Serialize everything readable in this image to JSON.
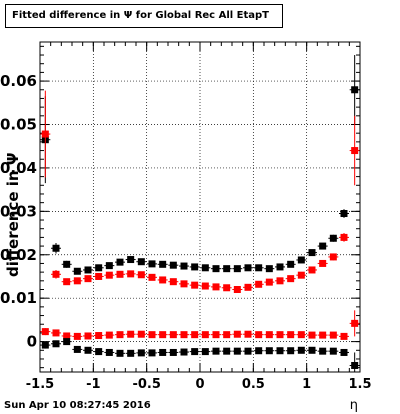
{
  "title": "Fitted difference in  Ψ  for Global Rec All EtapT",
  "timestamp": "Sun Apr 10 08:27:45 2016",
  "chart_data": {
    "type": "scatter",
    "title": "Fitted difference in  Ψ  for Global Rec All EtapT",
    "xlabel": "η",
    "ylabel": "difference in  Ψ",
    "xlim": [
      -1.5,
      1.5
    ],
    "ylim": [
      -0.007,
      0.069
    ],
    "x_ticks": [
      "-1.5",
      "-1",
      "-0.5",
      "0",
      "0.5",
      "1",
      "1.5"
    ],
    "y_ticks": [
      "0",
      "0.01",
      "0.02",
      "0.03",
      "0.04",
      "0.05",
      "0.06"
    ],
    "grid": true,
    "series": [
      {
        "color": "#000000",
        "x": [
          -1.45,
          -1.35,
          -1.25,
          -1.15,
          -1.05,
          -0.95,
          -0.85,
          -0.75,
          -0.65,
          -0.55,
          -0.45,
          -0.35,
          -0.25,
          -0.15,
          -0.05,
          0.05,
          0.15,
          0.25,
          0.35,
          0.45,
          0.55,
          0.65,
          0.75,
          0.85,
          0.95,
          1.05,
          1.15,
          1.25,
          1.35,
          1.45
        ],
        "y": [
          0.0465,
          0.0215,
          0.0178,
          0.0162,
          0.0165,
          0.017,
          0.0175,
          0.0183,
          0.0189,
          0.0184,
          0.0179,
          0.0178,
          0.0176,
          0.0174,
          0.0172,
          0.017,
          0.0168,
          0.0168,
          0.0168,
          0.017,
          0.017,
          0.0168,
          0.0172,
          0.0178,
          0.0188,
          0.0205,
          0.022,
          0.0238,
          0.0295,
          0.058
        ],
        "err": [
          0.01,
          0.0012,
          0.0008,
          0.0005,
          0.0004,
          0.0004,
          0.0004,
          0.0004,
          0.0004,
          0.0004,
          0.0004,
          0.0004,
          0.0004,
          0.0004,
          0.0004,
          0.0004,
          0.0004,
          0.0004,
          0.0004,
          0.0004,
          0.0004,
          0.0004,
          0.0004,
          0.0004,
          0.0004,
          0.0005,
          0.0006,
          0.0008,
          0.001,
          0.008
        ]
      },
      {
        "color": "#ff0000",
        "x": [
          -1.45,
          -1.35,
          -1.25,
          -1.15,
          -1.05,
          -0.95,
          -0.85,
          -0.75,
          -0.65,
          -0.55,
          -0.45,
          -0.35,
          -0.25,
          -0.15,
          -0.05,
          0.05,
          0.15,
          0.25,
          0.35,
          0.45,
          0.55,
          0.65,
          0.75,
          0.85,
          0.95,
          1.05,
          1.15,
          1.25,
          1.35,
          1.45
        ],
        "y": [
          0.0478,
          0.0155,
          0.0138,
          0.014,
          0.0145,
          0.015,
          0.0153,
          0.0155,
          0.0156,
          0.0154,
          0.0148,
          0.0142,
          0.0138,
          0.0133,
          0.013,
          0.0128,
          0.0126,
          0.0124,
          0.012,
          0.0125,
          0.0132,
          0.0137,
          0.014,
          0.0145,
          0.0153,
          0.0165,
          0.018,
          0.0195,
          0.024,
          0.044
        ],
        "err": [
          0.01,
          0.001,
          0.0006,
          0.0004,
          0.0004,
          0.0004,
          0.0004,
          0.0004,
          0.0004,
          0.0004,
          0.0004,
          0.0004,
          0.0004,
          0.0004,
          0.0004,
          0.0004,
          0.0004,
          0.0004,
          0.0004,
          0.0004,
          0.0004,
          0.0004,
          0.0004,
          0.0004,
          0.0004,
          0.0005,
          0.0006,
          0.0008,
          0.001,
          0.008
        ]
      },
      {
        "color": "#ff0000",
        "x": [
          -1.45,
          -1.35,
          -1.25,
          -1.15,
          -1.05,
          -0.95,
          -0.85,
          -0.75,
          -0.65,
          -0.55,
          -0.45,
          -0.35,
          -0.25,
          -0.15,
          -0.05,
          0.05,
          0.15,
          0.25,
          0.35,
          0.45,
          0.55,
          0.65,
          0.75,
          0.85,
          0.95,
          1.05,
          1.15,
          1.25,
          1.35,
          1.45
        ],
        "y": [
          0.0023,
          0.002,
          0.0013,
          0.0012,
          0.0013,
          0.0014,
          0.0015,
          0.0016,
          0.0017,
          0.0017,
          0.0016,
          0.0016,
          0.0016,
          0.0016,
          0.0016,
          0.0016,
          0.0016,
          0.0016,
          0.0017,
          0.0017,
          0.0016,
          0.0016,
          0.0016,
          0.0016,
          0.0016,
          0.0015,
          0.0015,
          0.0015,
          0.0012,
          0.0042
        ],
        "err": [
          0.0008,
          0.0006,
          0.0004,
          0.0003,
          0.0003,
          0.0003,
          0.0003,
          0.0003,
          0.0003,
          0.0003,
          0.0003,
          0.0003,
          0.0003,
          0.0003,
          0.0003,
          0.0003,
          0.0003,
          0.0003,
          0.0003,
          0.0003,
          0.0003,
          0.0003,
          0.0003,
          0.0003,
          0.0003,
          0.0003,
          0.0003,
          0.0004,
          0.0006,
          0.003
        ]
      },
      {
        "color": "#000000",
        "x": [
          -1.45,
          -1.35,
          -1.25,
          -1.15,
          -1.05,
          -0.95,
          -0.85,
          -0.75,
          -0.65,
          -0.55,
          -0.45,
          -0.35,
          -0.25,
          -0.15,
          -0.05,
          0.05,
          0.15,
          0.25,
          0.35,
          0.45,
          0.55,
          0.65,
          0.75,
          0.85,
          0.95,
          1.05,
          1.15,
          1.25,
          1.35,
          1.45
        ],
        "y": [
          -0.0008,
          -0.0005,
          0.0,
          -0.0018,
          -0.002,
          -0.0023,
          -0.0025,
          -0.0027,
          -0.0027,
          -0.0026,
          -0.0026,
          -0.0025,
          -0.0025,
          -0.0024,
          -0.0023,
          -0.0023,
          -0.0022,
          -0.0022,
          -0.0022,
          -0.0022,
          -0.0021,
          -0.0021,
          -0.0021,
          -0.0021,
          -0.002,
          -0.002,
          -0.0022,
          -0.0022,
          -0.0025,
          -0.0055
        ],
        "err": [
          0.0008,
          0.0006,
          0.0004,
          0.0003,
          0.0003,
          0.0003,
          0.0003,
          0.0003,
          0.0003,
          0.0003,
          0.0003,
          0.0003,
          0.0003,
          0.0003,
          0.0003,
          0.0003,
          0.0003,
          0.0003,
          0.0003,
          0.0003,
          0.0003,
          0.0003,
          0.0003,
          0.0003,
          0.0003,
          0.0003,
          0.0003,
          0.0004,
          0.0006,
          0.003
        ]
      }
    ]
  }
}
